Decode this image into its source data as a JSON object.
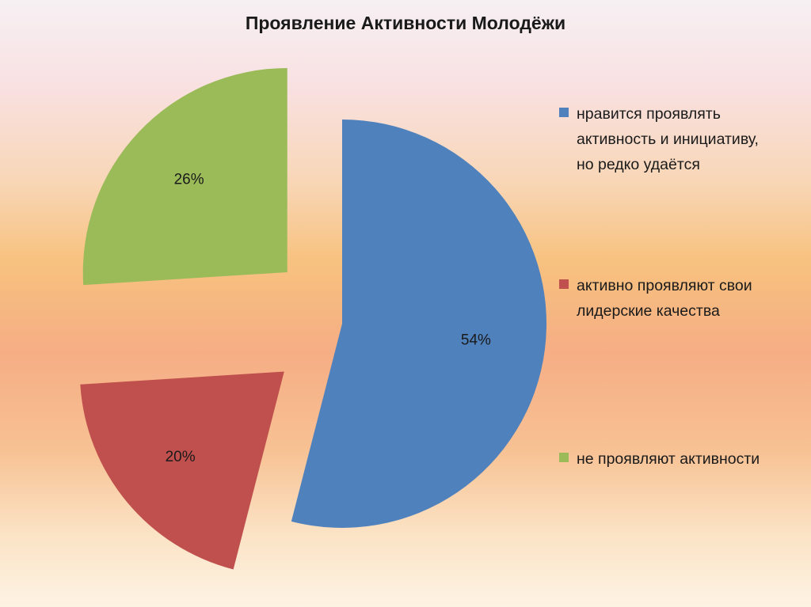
{
  "chart_data": {
    "type": "pie",
    "title": "Проявление Активности Молодёжи",
    "slices": [
      {
        "label": "нравится проявлять\nактивность и инициативу,\nно редко удаётся",
        "value": 54,
        "value_label": "54%",
        "color": "#4f81bd",
        "exploded": false
      },
      {
        "label": "активно проявляют свои\nлидерские качества",
        "value": 20,
        "value_label": "20%",
        "color": "#c0504d",
        "exploded": true
      },
      {
        "label": "не  проявляют активности",
        "value": 26,
        "value_label": "26%",
        "color": "#9bbb59",
        "exploded": true
      }
    ],
    "legend_position": "right"
  }
}
